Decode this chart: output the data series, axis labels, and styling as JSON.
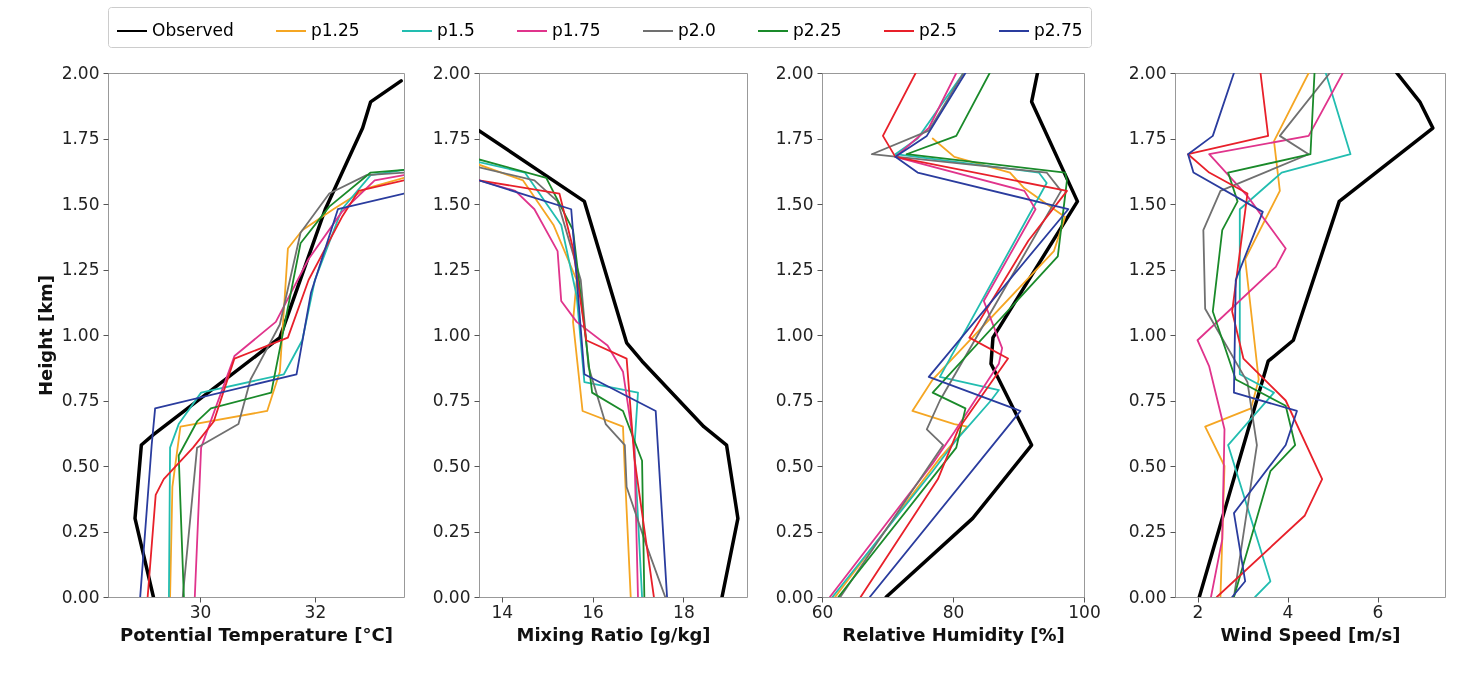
{
  "chart_data": [
    {
      "type": "line",
      "xlabel": "Potential Temperature [°C]",
      "ylabel": "Height [km]",
      "xlim": [
        28.4,
        33.55
      ],
      "xticks": [
        30,
        32
      ],
      "ylim": [
        0,
        2
      ],
      "yticks": [
        {
          "value": 0,
          "label": "0.00"
        },
        0.25,
        {
          "value": 0.5,
          "label": "0.50"
        },
        0.75,
        {
          "value": 1,
          "label": "1.00"
        },
        1.25,
        {
          "value": 1.5,
          "label": "1.50"
        },
        1.75,
        {
          "value": 2,
          "label": "2.00"
        }
      ],
      "grid": false,
      "legend": "top",
      "series": [
        {
          "name": "Observed",
          "color": "#000000",
          "x": [
            29.19,
            28.87,
            28.98,
            29.19,
            31.39,
            32.18,
            32.83,
            32.97,
            33.5
          ],
          "values": [
            0,
            0.3,
            0.58,
            0.62,
            0.99,
            1.48,
            1.79,
            1.89,
            1.97
          ]
        },
        {
          "name": "p1.25",
          "color": "#f5a623",
          "x": [
            29.48,
            29.52,
            29.66,
            31.17,
            31.39,
            31.53,
            31.78,
            32.32,
            32.9,
            33.55
          ],
          "values": [
            0,
            0.42,
            0.65,
            0.71,
            0.86,
            1.33,
            1.4,
            1.48,
            1.56,
            1.6
          ]
        },
        {
          "name": "p1.5",
          "color": "#22bdb0",
          "x": [
            29.46,
            29.48,
            29.63,
            30.02,
            31.46,
            31.78,
            32.0,
            32.47,
            32.97,
            33.55
          ],
          "values": [
            0,
            0.57,
            0.66,
            0.78,
            0.85,
            0.98,
            1.21,
            1.48,
            1.61,
            1.63
          ]
        },
        {
          "name": "p1.75",
          "color": "#e0348c",
          "x": [
            29.91,
            30.02,
            30.6,
            31.32,
            31.89,
            32.47,
            33.04,
            33.55
          ],
          "values": [
            0,
            0.57,
            0.92,
            1.05,
            1.29,
            1.47,
            1.59,
            1.61
          ]
        },
        {
          "name": "p2.0",
          "color": "#707070",
          "x": [
            29.7,
            29.95,
            30.67,
            30.88,
            31.39,
            31.75,
            32.25,
            32.9,
            33.55
          ],
          "values": [
            0,
            0.57,
            0.66,
            0.83,
            1.04,
            1.39,
            1.54,
            1.61,
            1.62
          ]
        },
        {
          "name": "p2.25",
          "color": "#1a8a2a",
          "x": [
            29.72,
            29.63,
            29.95,
            30.19,
            31.24,
            31.75,
            32.25,
            32.97,
            33.55
          ],
          "values": [
            0,
            0.54,
            0.67,
            0.72,
            0.78,
            1.35,
            1.49,
            1.62,
            1.63
          ]
        },
        {
          "name": "p2.5",
          "color": "#e8202a",
          "x": [
            29.09,
            29.23,
            29.37,
            29.88,
            30.24,
            30.6,
            31.53,
            31.89,
            32.47,
            32.76,
            33.55
          ],
          "values": [
            0,
            0.39,
            0.45,
            0.57,
            0.67,
            0.91,
            0.99,
            1.21,
            1.45,
            1.55,
            1.59
          ]
        },
        {
          "name": "p2.75",
          "color": "#2a3c9e",
          "x": [
            28.96,
            29.16,
            29.22,
            31.68,
            31.93,
            32.4,
            33.55
          ],
          "values": [
            0,
            0.58,
            0.72,
            0.85,
            1.16,
            1.48,
            1.54
          ]
        }
      ]
    },
    {
      "type": "line",
      "xlabel": "Mixing Ratio [g/kg]",
      "xlim": [
        13.5,
        19.4
      ],
      "xticks": [
        14,
        16,
        18
      ],
      "ylim": [
        0,
        2
      ],
      "yticks": [
        {
          "value": 0,
          "label": "0.00"
        },
        0.25,
        {
          "value": 0.5,
          "label": "0.50"
        },
        0.75,
        {
          "value": 1,
          "label": "1.00"
        },
        1.25,
        {
          "value": 1.5,
          "label": "1.50"
        },
        1.75,
        {
          "value": 2,
          "label": "2.00"
        }
      ],
      "grid": false,
      "legend": "top",
      "series": [
        {
          "name": "Observed",
          "color": "#000000",
          "x": [
            18.85,
            19.2,
            18.95,
            18.45,
            17.09,
            16.75,
            15.82,
            13.5
          ],
          "values": [
            0,
            0.3,
            0.58,
            0.65,
            0.9,
            0.97,
            1.51,
            1.78
          ]
        },
        {
          "name": "p1.25",
          "color": "#f5a623",
          "x": [
            16.84,
            16.71,
            16.67,
            15.78,
            15.57,
            15.65,
            15.14,
            14.47,
            13.5
          ],
          "values": [
            0,
            0.48,
            0.65,
            0.71,
            1.05,
            1.21,
            1.42,
            1.59,
            1.65
          ]
        },
        {
          "name": "p1.5",
          "color": "#22bdb0",
          "x": [
            17.09,
            16.92,
            17.0,
            15.82,
            15.65,
            15.31,
            14.51,
            13.5
          ],
          "values": [
            0,
            0.57,
            0.78,
            0.82,
            1.15,
            1.42,
            1.62,
            1.66
          ]
        },
        {
          "name": "p1.75",
          "color": "#e0348c",
          "x": [
            17.0,
            16.92,
            16.67,
            16.33,
            15.65,
            15.31,
            15.23,
            14.72,
            14.3,
            13.5
          ],
          "values": [
            0,
            0.57,
            0.86,
            0.96,
            1.05,
            1.13,
            1.32,
            1.48,
            1.55,
            1.59
          ]
        },
        {
          "name": "p2.0",
          "color": "#707070",
          "x": [
            17.6,
            17.18,
            16.75,
            16.71,
            16.29,
            15.91,
            15.74,
            15.23,
            14.72,
            13.5
          ],
          "values": [
            0,
            0.2,
            0.42,
            0.58,
            0.66,
            0.88,
            1.21,
            1.51,
            1.59,
            1.64
          ]
        },
        {
          "name": "p2.25",
          "color": "#1a8a2a",
          "x": [
            17.14,
            17.09,
            16.67,
            15.99,
            15.57,
            14.98,
            13.5
          ],
          "values": [
            0,
            0.52,
            0.71,
            0.78,
            1.4,
            1.6,
            1.67
          ]
        },
        {
          "name": "p2.5",
          "color": "#e8202a",
          "x": [
            17.35,
            16.92,
            16.75,
            15.86,
            15.57,
            15.27,
            13.5
          ],
          "values": [
            0,
            0.53,
            0.91,
            0.98,
            1.33,
            1.54,
            1.59
          ]
        },
        {
          "name": "p2.75",
          "color": "#2a3c9e",
          "x": [
            17.64,
            17.39,
            15.82,
            15.53,
            13.5
          ],
          "values": [
            0,
            0.71,
            0.85,
            1.48,
            1.59
          ]
        }
      ]
    },
    {
      "type": "line",
      "xlabel": "Relative Humidity [%]",
      "xlim": [
        60,
        100
      ],
      "xticks": [
        60,
        80,
        100
      ],
      "ylim": [
        0,
        2
      ],
      "yticks": [
        {
          "value": 0,
          "label": "0.00"
        },
        0.25,
        {
          "value": 0.5,
          "label": "0.50"
        },
        0.75,
        {
          "value": 1,
          "label": "1.00"
        },
        1.25,
        {
          "value": 1.5,
          "label": "1.50"
        },
        1.75,
        {
          "value": 2,
          "label": "2.00"
        }
      ],
      "grid": false,
      "legend": "top",
      "series": [
        {
          "name": "Observed",
          "color": "#000000",
          "x": [
            69.8,
            83.0,
            92.0,
            85.8,
            86.1,
            99.0,
            92.0,
            92.9
          ],
          "values": [
            0,
            0.3,
            0.58,
            0.89,
            0.99,
            1.51,
            1.89,
            2.0
          ]
        },
        {
          "name": "p1.25",
          "color": "#f5a623",
          "x": [
            62.0,
            78.0,
            82.2,
            80.2,
            73.8,
            76.9,
            95.4,
            97.1,
            90.9,
            88.7,
            80.2,
            76.9
          ],
          "values": [
            0,
            0.53,
            0.65,
            0.66,
            0.71,
            0.83,
            1.32,
            1.45,
            1.56,
            1.62,
            1.68,
            1.75
          ]
        },
        {
          "name": "p1.5",
          "color": "#22bdb0",
          "x": [
            61.6,
            76.9,
            80.2,
            85.8,
            87.0,
            78.0,
            94.3,
            93.1,
            71.2,
            74.6,
            81.6
          ],
          "values": [
            0,
            0.48,
            0.59,
            0.75,
            0.79,
            0.84,
            1.58,
            1.62,
            1.69,
            1.75,
            2.0
          ]
        },
        {
          "name": "p1.75",
          "color": "#e0348c",
          "x": [
            61.2,
            76.9,
            80.2,
            87.0,
            87.5,
            84.7,
            92.6,
            90.9,
            71.2,
            76.3,
            80.5
          ],
          "values": [
            0,
            0.51,
            0.63,
            0.89,
            0.95,
            1.13,
            1.48,
            1.55,
            1.68,
            1.79,
            2.0
          ]
        },
        {
          "name": "p2.0",
          "color": "#707070",
          "x": [
            62.8,
            78.5,
            76.0,
            78.0,
            96.5,
            94.3,
            67.6,
            76.3,
            81.6
          ],
          "values": [
            0,
            0.58,
            0.64,
            0.75,
            1.55,
            1.62,
            1.69,
            1.78,
            2.0
          ]
        },
        {
          "name": "p2.25",
          "color": "#1a8a2a",
          "x": [
            62.5,
            80.5,
            81.9,
            76.9,
            96.0,
            97.4,
            97.1,
            72.9,
            80.5,
            85.6
          ],
          "values": [
            0,
            0.57,
            0.72,
            0.78,
            1.3,
            1.59,
            1.62,
            1.69,
            1.76,
            2.0
          ]
        },
        {
          "name": "p2.5",
          "color": "#e8202a",
          "x": [
            65.9,
            77.7,
            80.8,
            88.4,
            82.5,
            91.5,
            97.4,
            71.2,
            69.3,
            74.3
          ],
          "values": [
            0,
            0.45,
            0.64,
            0.91,
            0.99,
            1.36,
            1.55,
            1.68,
            1.76,
            2.0
          ]
        },
        {
          "name": "p2.75",
          "color": "#2a3c9e",
          "x": [
            67.3,
            90.3,
            76.3,
            97.6,
            74.6,
            71.2,
            76.0,
            81.9
          ],
          "values": [
            0,
            0.71,
            0.84,
            1.48,
            1.62,
            1.68,
            1.76,
            2.0
          ]
        }
      ]
    },
    {
      "type": "line",
      "xlabel": "Wind Speed [m/s]",
      "xlim": [
        1.5,
        7.5
      ],
      "xticks": [
        2,
        4,
        6
      ],
      "ylim": [
        0,
        2
      ],
      "yticks": [
        {
          "value": 0,
          "label": "0.00"
        },
        0.25,
        {
          "value": 0.5,
          "label": "0.50"
        },
        0.75,
        {
          "value": 1,
          "label": "1.00"
        },
        1.25,
        {
          "value": 1.5,
          "label": "1.50"
        },
        1.75,
        {
          "value": 2,
          "label": "2.00"
        }
      ],
      "grid": false,
      "legend": "top",
      "series": [
        {
          "name": "Observed",
          "color": "#000000",
          "x": [
            2.04,
            3.57,
            4.13,
            5.15,
            7.23,
            6.94,
            6.43
          ],
          "values": [
            0,
            0.9,
            0.98,
            1.51,
            1.79,
            1.89,
            2.0
          ]
        },
        {
          "name": "p1.25",
          "color": "#f5a623",
          "x": [
            2.51,
            2.6,
            2.17,
            3.19,
            3.36,
            3.06,
            3.83,
            3.7,
            4.47
          ],
          "values": [
            0,
            0.5,
            0.65,
            0.72,
            0.83,
            1.29,
            1.55,
            1.74,
            2.0
          ]
        },
        {
          "name": "p1.5",
          "color": "#22bdb0",
          "x": [
            3.28,
            3.62,
            2.68,
            3.7,
            2.94,
            2.94,
            3.87,
            5.4,
            4.85
          ],
          "values": [
            0,
            0.06,
            0.58,
            0.78,
            0.85,
            1.48,
            1.62,
            1.69,
            2.0
          ]
        },
        {
          "name": "p1.75",
          "color": "#e0348c",
          "x": [
            2.3,
            2.55,
            2.6,
            2.26,
            2.0,
            3.74,
            3.96,
            3.11,
            2.26,
            4.47,
            5.23
          ],
          "values": [
            0,
            0.22,
            0.64,
            0.88,
            0.98,
            1.26,
            1.33,
            1.53,
            1.69,
            1.76,
            2.0
          ]
        },
        {
          "name": "p2.0",
          "color": "#707070",
          "x": [
            2.81,
            3.32,
            3.11,
            2.17,
            2.13,
            2.51,
            4.47,
            3.83,
            4.94
          ],
          "values": [
            0,
            0.58,
            0.82,
            1.1,
            1.4,
            1.55,
            1.69,
            1.76,
            2.0
          ]
        },
        {
          "name": "p2.25",
          "color": "#1a8a2a",
          "x": [
            2.81,
            3.62,
            4.17,
            3.96,
            2.85,
            2.34,
            2.55,
            2.89,
            2.68,
            4.51,
            4.6
          ],
          "values": [
            0,
            0.48,
            0.58,
            0.73,
            0.83,
            1.09,
            1.4,
            1.51,
            1.62,
            1.69,
            2.0
          ]
        },
        {
          "name": "p2.5",
          "color": "#e8202a",
          "x": [
            2.43,
            4.38,
            4.77,
            3.96,
            3.02,
            2.77,
            3.11,
            2.26,
            1.79,
            3.57,
            3.4
          ],
          "values": [
            0,
            0.31,
            0.45,
            0.75,
            0.91,
            1.09,
            1.54,
            1.62,
            1.69,
            1.76,
            2.0
          ]
        },
        {
          "name": "p2.75",
          "color": "#2a3c9e",
          "x": [
            2.77,
            3.06,
            2.81,
            3.96,
            4.21,
            2.81,
            2.85,
            3.45,
            1.91,
            1.79,
            2.34,
            2.81
          ],
          "values": [
            0,
            0.06,
            0.32,
            0.58,
            0.71,
            0.78,
            1.21,
            1.47,
            1.62,
            1.69,
            1.76,
            2.0
          ]
        }
      ]
    }
  ]
}
